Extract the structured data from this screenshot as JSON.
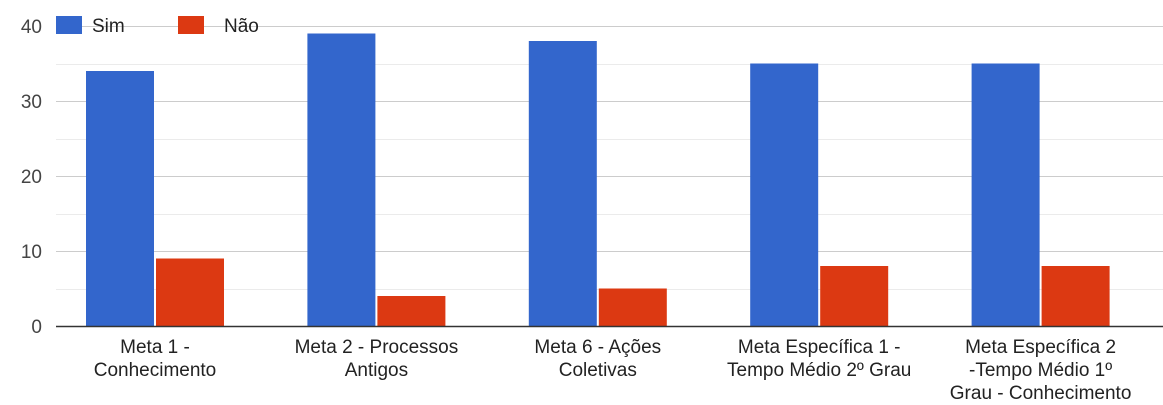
{
  "chart_data": {
    "type": "bar",
    "title": "",
    "xlabel": "",
    "ylabel": "",
    "ylim": [
      0,
      40
    ],
    "yticks": [
      0,
      10,
      20,
      30,
      40
    ],
    "grid": true,
    "legend_position": "top-left",
    "categories": [
      [
        "Meta 1 -",
        "Conhecimento"
      ],
      [
        "Meta 2 - Processos",
        "Antigos"
      ],
      [
        "Meta 6 - Ações",
        "Coletivas"
      ],
      [
        "Meta Específica 1 -",
        "Tempo Médio 2º Grau"
      ],
      [
        "Meta Específica 2",
        "-Tempo Médio 1º",
        "Grau - Conhecimento"
      ]
    ],
    "series": [
      {
        "name": "Sim",
        "color": "#3366cc",
        "values": [
          34,
          39,
          38,
          35,
          35
        ]
      },
      {
        "name": "Não",
        "color": "#dc3912",
        "values": [
          9,
          4,
          5,
          8,
          8
        ]
      }
    ]
  }
}
